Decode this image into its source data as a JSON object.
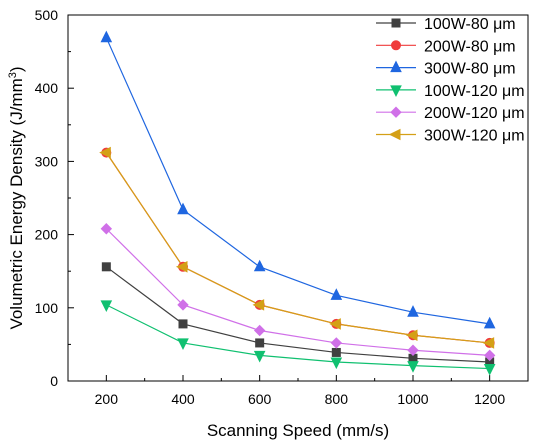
{
  "chart_data": {
    "type": "line",
    "title": "",
    "xlabel": "Scanning Speed (mm/s)",
    "ylabel_main": "Volumetric Energy Density (J/mm",
    "ylabel_sup": "3",
    "ylabel_end": ")",
    "x": [
      200,
      400,
      600,
      800,
      1000,
      1200
    ],
    "xlim": [
      100,
      1300
    ],
    "ylim": [
      0,
      500
    ],
    "xticks": [
      200,
      400,
      600,
      800,
      1000,
      1200
    ],
    "yticks": [
      0,
      100,
      200,
      300,
      400,
      500
    ],
    "grid": false,
    "legend_position": "top-right",
    "series": [
      {
        "name": "100W-80 μm",
        "color": "#404040",
        "marker": "square",
        "values": [
          156,
          78,
          52,
          39,
          31,
          26
        ]
      },
      {
        "name": "200W-80 μm",
        "color": "#ef3b3b",
        "marker": "circle",
        "values": [
          312,
          156,
          104,
          78,
          62.5,
          52
        ]
      },
      {
        "name": "300W-80 μm",
        "color": "#1f66e0",
        "marker": "triangle-up",
        "values": [
          469,
          234,
          156,
          117,
          94,
          78
        ]
      },
      {
        "name": "100W-120 μm",
        "color": "#10c070",
        "marker": "triangle-down",
        "values": [
          104,
          52,
          35,
          26,
          21,
          17
        ]
      },
      {
        "name": "200W-120 μm",
        "color": "#d070e8",
        "marker": "diamond",
        "values": [
          208,
          104,
          69,
          52,
          42,
          35
        ]
      },
      {
        "name": "300W-120 μm",
        "color": "#d4a017",
        "marker": "triangle-left",
        "values": [
          312,
          156,
          104,
          78,
          62.5,
          52
        ]
      }
    ]
  }
}
